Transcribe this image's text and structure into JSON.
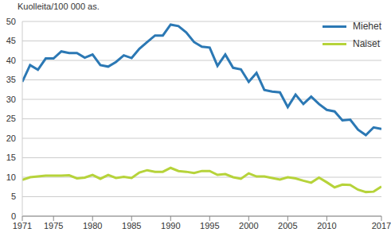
{
  "chart_data": {
    "type": "line",
    "y_label": "Kuolleita/100 000 as.",
    "x": [
      1971,
      1972,
      1973,
      1974,
      1975,
      1976,
      1977,
      1978,
      1979,
      1980,
      1981,
      1982,
      1983,
      1984,
      1985,
      1986,
      1987,
      1988,
      1989,
      1990,
      1991,
      1992,
      1993,
      1994,
      1995,
      1996,
      1997,
      1998,
      1999,
      2000,
      2001,
      2002,
      2003,
      2004,
      2005,
      2006,
      2007,
      2008,
      2009,
      2010,
      2011,
      2012,
      2013,
      2014,
      2015,
      2016,
      2017
    ],
    "series": [
      {
        "name": "Miehet",
        "color": "#2b78b4",
        "values": [
          34.5,
          38.8,
          37.6,
          40.5,
          40.5,
          42.3,
          41.9,
          41.9,
          40.7,
          41.5,
          38.8,
          38.4,
          39.6,
          41.3,
          40.6,
          43.0,
          44.7,
          46.4,
          46.4,
          49.2,
          48.8,
          47.2,
          44.7,
          43.5,
          43.3,
          38.6,
          41.5,
          38.1,
          37.7,
          34.5,
          36.8,
          32.4,
          32.0,
          31.8,
          28.0,
          31.2,
          28.8,
          30.7,
          28.8,
          27.3,
          26.9,
          24.6,
          24.8,
          22.2,
          20.8,
          22.8,
          22.4
        ]
      },
      {
        "name": "Naiset",
        "color": "#b6d33a",
        "values": [
          9.3,
          10.0,
          10.2,
          10.4,
          10.4,
          10.4,
          10.5,
          9.7,
          9.9,
          10.6,
          9.6,
          10.6,
          9.8,
          10.1,
          9.8,
          11.2,
          11.8,
          11.4,
          11.4,
          12.4,
          11.6,
          11.4,
          11.1,
          11.6,
          11.6,
          10.6,
          10.8,
          10.0,
          9.6,
          11.0,
          10.2,
          10.2,
          9.8,
          9.4,
          10.0,
          9.7,
          9.1,
          8.6,
          9.9,
          8.7,
          7.4,
          8.1,
          8.0,
          6.8,
          6.2,
          6.3,
          7.6
        ]
      }
    ],
    "xlim": [
      1971,
      2017
    ],
    "xticks": [
      1971,
      1975,
      1980,
      1985,
      1990,
      1995,
      2000,
      2005,
      2010,
      2017
    ],
    "ylim": [
      0,
      50
    ],
    "yticks": [
      0,
      5,
      10,
      15,
      20,
      25,
      30,
      35,
      40,
      45,
      50
    ],
    "grid": true,
    "legend": "upper right"
  }
}
